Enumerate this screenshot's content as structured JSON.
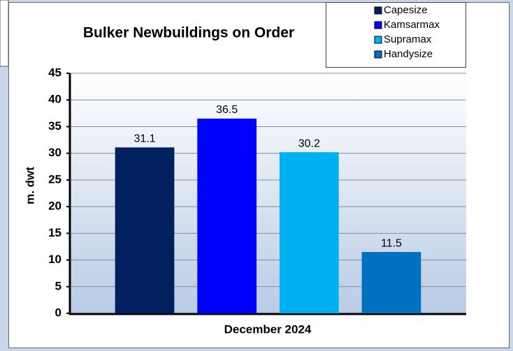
{
  "chart_data": {
    "type": "bar",
    "title": "Bulker Newbuildings on Order",
    "y_label": "m. dwt",
    "x_label": "December 2024",
    "categories": [
      "December 2024"
    ],
    "series": [
      {
        "name": "Capesize",
        "color": "#002060",
        "values": [
          31.1
        ]
      },
      {
        "name": "Kamsarmax",
        "color": "#0000ff",
        "values": [
          36.5
        ]
      },
      {
        "name": "Supramax",
        "color": "#00b0f0",
        "values": [
          30.2
        ]
      },
      {
        "name": "Handysize",
        "color": "#0070c0",
        "values": [
          11.5
        ]
      }
    ],
    "ylim": [
      0,
      45
    ],
    "yticks": [
      0,
      5,
      10,
      15,
      20,
      25,
      30,
      35,
      40,
      45
    ],
    "grid": true,
    "legend": "top-right"
  }
}
